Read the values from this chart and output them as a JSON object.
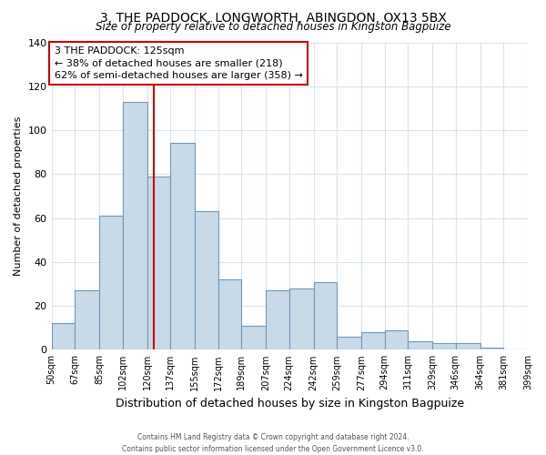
{
  "title": "3, THE PADDOCK, LONGWORTH, ABINGDON, OX13 5BX",
  "subtitle": "Size of property relative to detached houses in Kingston Bagpuize",
  "xlabel": "Distribution of detached houses by size in Kingston Bagpuize",
  "ylabel": "Number of detached properties",
  "bar_color": "#c8d9e8",
  "bar_edge_color": "#7099bb",
  "bins": [
    50,
    67,
    85,
    102,
    120,
    137,
    155,
    172,
    189,
    207,
    224,
    242,
    259,
    277,
    294,
    311,
    329,
    346,
    364,
    381,
    399
  ],
  "bin_labels": [
    "50sqm",
    "67sqm",
    "85sqm",
    "102sqm",
    "120sqm",
    "137sqm",
    "155sqm",
    "172sqm",
    "189sqm",
    "207sqm",
    "224sqm",
    "242sqm",
    "259sqm",
    "277sqm",
    "294sqm",
    "311sqm",
    "329sqm",
    "346sqm",
    "364sqm",
    "381sqm",
    "399sqm"
  ],
  "values": [
    12,
    27,
    61,
    113,
    79,
    94,
    63,
    32,
    11,
    27,
    28,
    31,
    6,
    8,
    9,
    4,
    3,
    3,
    1,
    0
  ],
  "ylim": [
    0,
    140
  ],
  "yticks": [
    0,
    20,
    40,
    60,
    80,
    100,
    120,
    140
  ],
  "vline_x": 125,
  "vline_color": "#cc0000",
  "annotation_title": "3 THE PADDOCK: 125sqm",
  "annotation_line1": "← 38% of detached houses are smaller (218)",
  "annotation_line2": "62% of semi-detached houses are larger (358) →",
  "annotation_box_color": "#ffffff",
  "annotation_box_edge": "#cc0000",
  "footer1": "Contains HM Land Registry data © Crown copyright and database right 2024.",
  "footer2": "Contains public sector information licensed under the Open Government Licence v3.0.",
  "background_color": "#ffffff",
  "plot_bg_color": "#ffffff",
  "grid_color": "#d8e4f0"
}
